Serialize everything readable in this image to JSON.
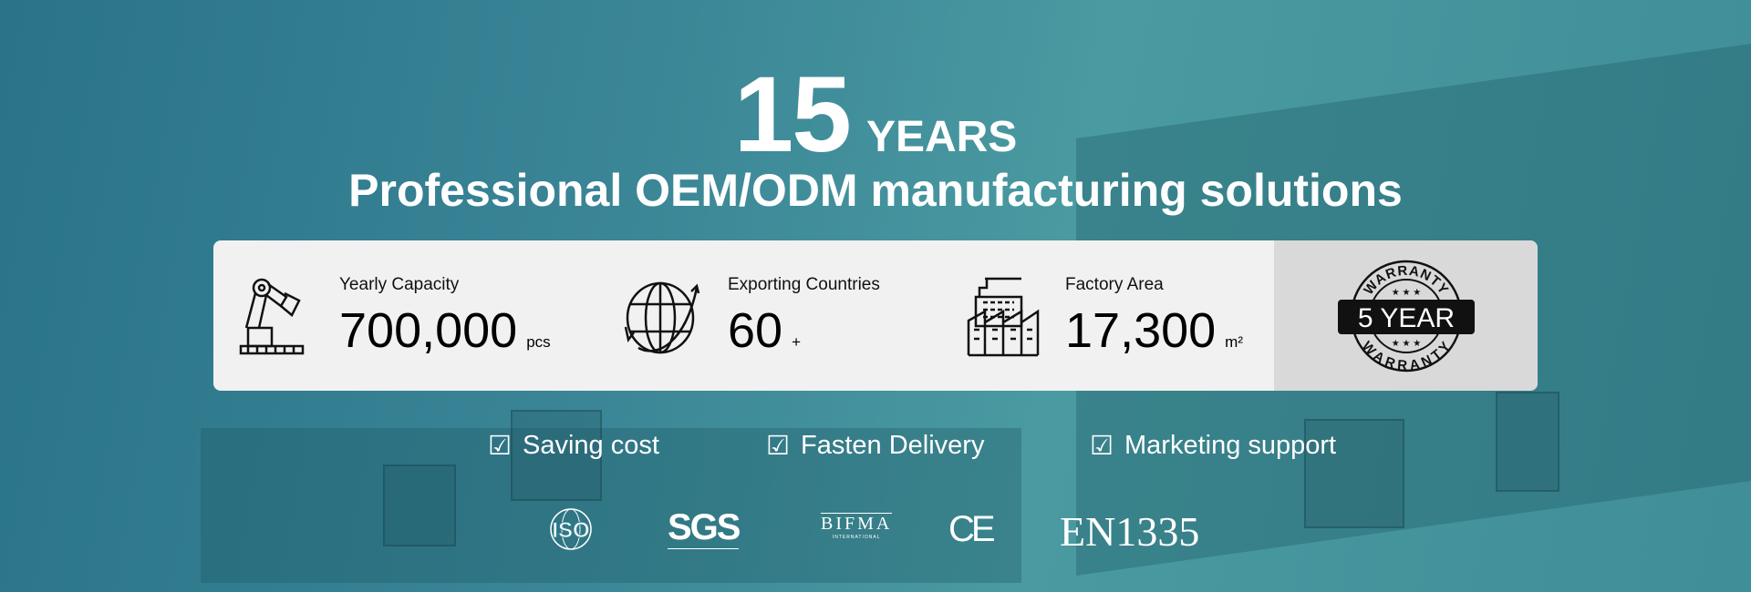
{
  "hero": {
    "number": "15",
    "years": "YEARS",
    "subtitle": "Professional OEM/ODM manufacturing solutions"
  },
  "stats": [
    {
      "label": "Yearly Capacity",
      "value": "700,000",
      "unit": "pcs",
      "icon": "robot-arm-icon"
    },
    {
      "label": "Exporting Countries",
      "value": "60",
      "unit": "+",
      "icon": "globe-icon"
    },
    {
      "label": "Factory Area",
      "value": "17,300",
      "unit": "m²",
      "icon": "factory-icon"
    }
  ],
  "warranty": {
    "center": "5 YEAR",
    "ring": "WARRANTY",
    "stars": "★ ★ ★"
  },
  "features": [
    "Saving cost",
    "Fasten Delivery",
    "Marketing support"
  ],
  "certifications": [
    "ISO",
    "SGS",
    "BIFMA",
    "CE",
    "EN1335"
  ],
  "bifma_sub": "INTERNATIONAL",
  "colors": {
    "overlay": "#3a8596",
    "card": "#f1f1f1",
    "warranty_panel": "#d9d9d9"
  }
}
